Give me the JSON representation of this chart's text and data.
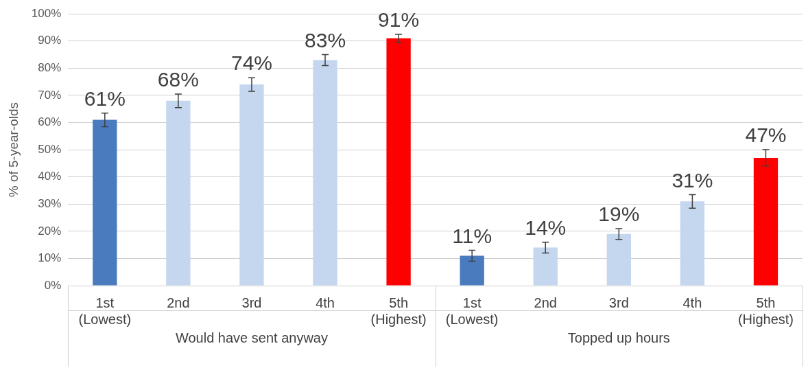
{
  "chart_data": {
    "type": "bar",
    "ylabel": "% of 5-year-olds",
    "categories": [
      "1st (Lowest)",
      "2nd",
      "3rd",
      "4th",
      "5th (Highest)",
      "1st (Lowest)",
      "2nd",
      "3rd",
      "4th",
      "5th (Highest)"
    ],
    "values": [
      61,
      68,
      74,
      83,
      91,
      11,
      14,
      19,
      31,
      47
    ],
    "errors": [
      2.5,
      2.5,
      2.5,
      2,
      1.5,
      2,
      2,
      2,
      2.5,
      3
    ],
    "colors": [
      "#4a7bbf",
      "#c4d7ef",
      "#c4d7ef",
      "#c4d7ef",
      "#ff0000",
      "#4a7bbf",
      "#c4d7ef",
      "#c4d7ef",
      "#c4d7ef",
      "#ff0000"
    ],
    "value_labels": [
      "61%",
      "68%",
      "74%",
      "83%",
      "91%",
      "11%",
      "14%",
      "19%",
      "31%",
      "47%"
    ],
    "ylim": [
      0,
      100
    ],
    "yticks": [
      {
        "value": 0,
        "label": "0%"
      },
      {
        "value": 10,
        "label": "10%"
      },
      {
        "value": 20,
        "label": "20%"
      },
      {
        "value": 30,
        "label": "30%"
      },
      {
        "value": 40,
        "label": "40%"
      },
      {
        "value": 50,
        "label": "50%"
      },
      {
        "value": 60,
        "label": "60%"
      },
      {
        "value": 70,
        "label": "70%"
      },
      {
        "value": 80,
        "label": "80%"
      },
      {
        "value": 90,
        "label": "90%"
      },
      {
        "value": 100,
        "label": "100%"
      }
    ],
    "grid": "y",
    "legend": false,
    "annotations": [
      "Would have sent anyway",
      "Topped up hours"
    ]
  }
}
